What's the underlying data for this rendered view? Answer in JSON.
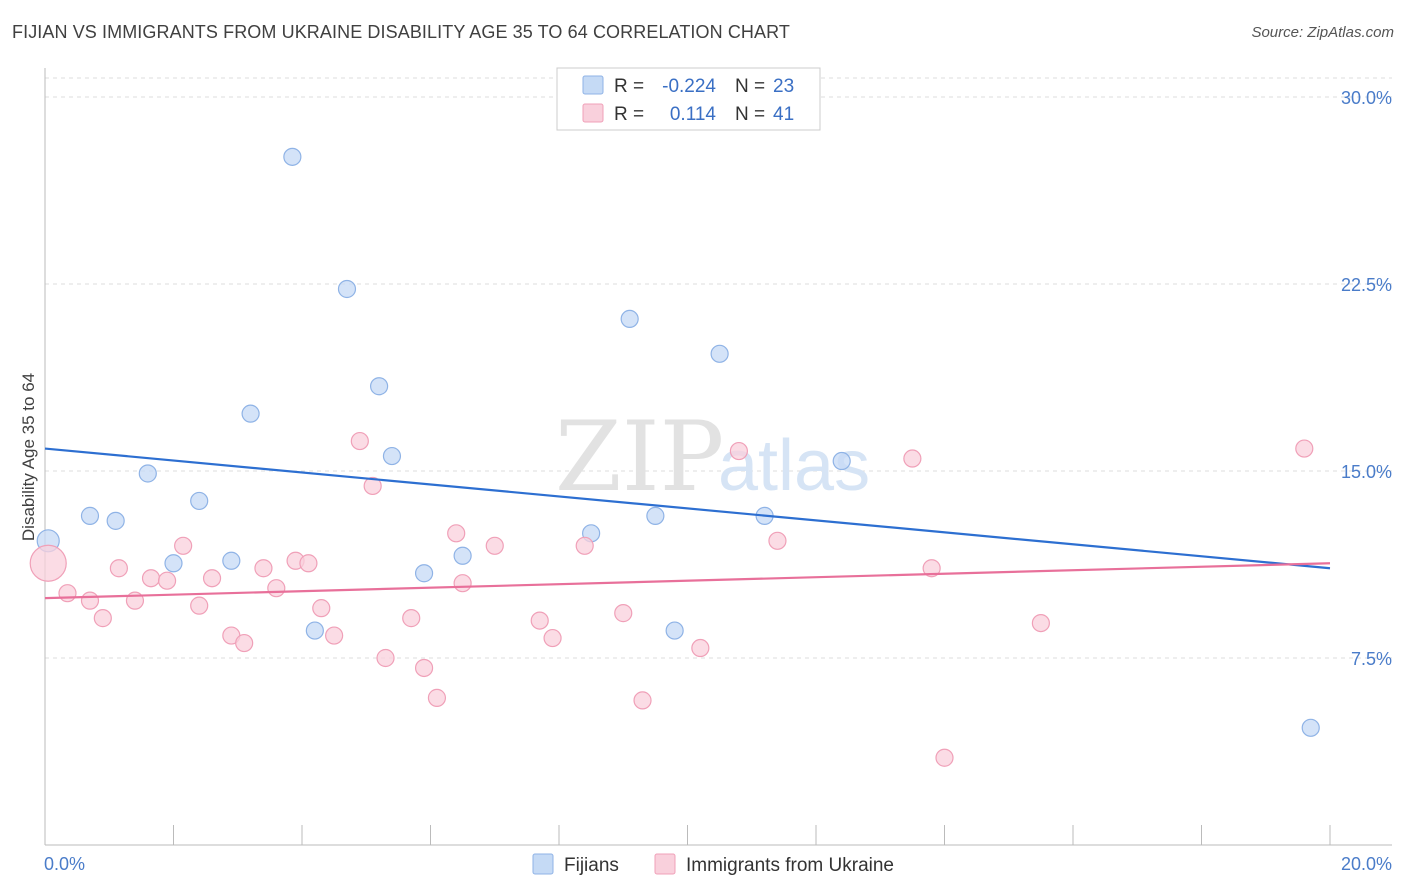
{
  "title": "FIJIAN VS IMMIGRANTS FROM UKRAINE DISABILITY AGE 35 TO 64 CORRELATION CHART",
  "source": "Source: ZipAtlas.com",
  "watermark": {
    "zip": "ZIP",
    "atlas": "atlas"
  },
  "colors": {
    "fijians_fill": "#c5daf5",
    "fijians_stroke": "#8fb3e6",
    "fijians_line": "#2d6fd1",
    "ukraine_fill": "#f9d0dc",
    "ukraine_stroke": "#f0a0b8",
    "ukraine_line": "#e8709a",
    "grid": "#dedede",
    "axis": "#bbbbbb"
  },
  "legend": {
    "rows": [
      {
        "r_label": "R =",
        "r_value": "-0.224",
        "n_label": "N =",
        "n_value": "23"
      },
      {
        "r_label": "R =",
        "r_value": "0.114",
        "n_label": "N =",
        "n_value": "41"
      }
    ]
  },
  "chart_data": {
    "type": "scatter",
    "xlabel": "",
    "ylabel": "Disability Age 35 to 64",
    "xlim": [
      0,
      20
    ],
    "ylim": [
      0,
      30
    ],
    "x_ticks": [
      0,
      20
    ],
    "x_tick_labels": [
      "0.0%",
      "20.0%"
    ],
    "y_ticks": [
      7.5,
      15,
      22.5,
      30
    ],
    "y_tick_labels": [
      "7.5%",
      "15.0%",
      "22.5%",
      "30.0%"
    ],
    "grid": true,
    "legend_position": "top-center",
    "series": [
      {
        "name": "Fijians",
        "r": -0.224,
        "n": 23,
        "trend": [
          [
            0,
            15.9
          ],
          [
            20,
            11.1
          ]
        ],
        "points": [
          [
            0.05,
            12.2
          ],
          [
            0.7,
            13.2
          ],
          [
            1.1,
            13.0
          ],
          [
            1.6,
            14.9
          ],
          [
            2.0,
            11.3
          ],
          [
            2.4,
            13.8
          ],
          [
            2.9,
            11.4
          ],
          [
            3.2,
            17.3
          ],
          [
            3.85,
            27.6
          ],
          [
            4.2,
            8.6
          ],
          [
            4.7,
            22.3
          ],
          [
            5.2,
            18.4
          ],
          [
            5.4,
            15.6
          ],
          [
            5.9,
            10.9
          ],
          [
            6.5,
            11.6
          ],
          [
            8.5,
            12.5
          ],
          [
            9.1,
            21.1
          ],
          [
            9.5,
            13.2
          ],
          [
            9.8,
            8.6
          ],
          [
            10.5,
            19.7
          ],
          [
            11.2,
            13.2
          ],
          [
            12.4,
            15.4
          ],
          [
            19.7,
            4.7
          ]
        ]
      },
      {
        "name": "Immigrants from Ukraine",
        "r": 0.114,
        "n": 41,
        "trend": [
          [
            0,
            9.9
          ],
          [
            20,
            11.3
          ]
        ],
        "points": [
          [
            0.05,
            11.3
          ],
          [
            0.35,
            10.1
          ],
          [
            0.7,
            9.8
          ],
          [
            0.9,
            9.1
          ],
          [
            1.15,
            11.1
          ],
          [
            1.4,
            9.8
          ],
          [
            1.65,
            10.7
          ],
          [
            1.9,
            10.6
          ],
          [
            2.15,
            12.0
          ],
          [
            2.4,
            9.6
          ],
          [
            2.6,
            10.7
          ],
          [
            2.9,
            8.4
          ],
          [
            3.1,
            8.1
          ],
          [
            3.4,
            11.1
          ],
          [
            3.6,
            10.3
          ],
          [
            3.9,
            11.4
          ],
          [
            4.1,
            11.3
          ],
          [
            4.3,
            9.5
          ],
          [
            4.5,
            8.4
          ],
          [
            4.9,
            16.2
          ],
          [
            5.1,
            14.4
          ],
          [
            5.3,
            7.5
          ],
          [
            5.7,
            9.1
          ],
          [
            5.9,
            7.1
          ],
          [
            6.1,
            5.9
          ],
          [
            6.4,
            12.5
          ],
          [
            6.5,
            10.5
          ],
          [
            7.0,
            12.0
          ],
          [
            7.7,
            9.0
          ],
          [
            7.9,
            8.3
          ],
          [
            8.4,
            12.0
          ],
          [
            9.0,
            9.3
          ],
          [
            9.3,
            5.8
          ],
          [
            10.2,
            7.9
          ],
          [
            10.8,
            15.8
          ],
          [
            11.4,
            12.2
          ],
          [
            13.5,
            15.5
          ],
          [
            13.8,
            11.1
          ],
          [
            14.0,
            3.5
          ],
          [
            15.5,
            8.9
          ],
          [
            19.6,
            15.9
          ]
        ]
      }
    ]
  },
  "bottom_legend": [
    {
      "label": "Fijians"
    },
    {
      "label": "Immigrants from Ukraine"
    }
  ]
}
